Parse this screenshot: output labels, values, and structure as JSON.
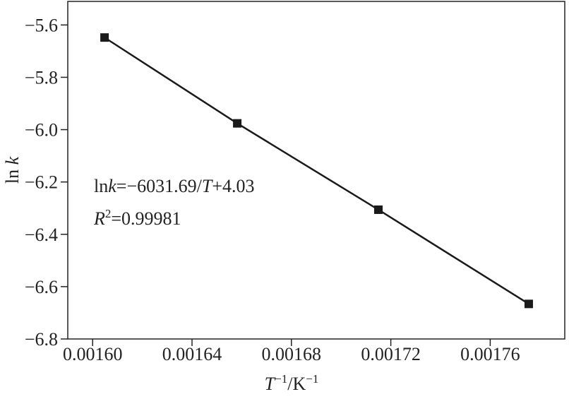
{
  "chart_data": {
    "type": "line",
    "x_label": [
      "T",
      "−1",
      "/K",
      "−1"
    ],
    "y_label": [
      "ln ",
      "k"
    ],
    "annotations": [
      [
        "ln",
        "k",
        "=−6031.69/",
        "T",
        "+4.03"
      ],
      [
        "R",
        "2",
        "=0.99981"
      ]
    ],
    "x": [
      0.0016048,
      0.0016582,
      0.001715,
      0.0017755
    ],
    "series": [
      {
        "color": "#1a1a1a",
        "values": [
          -5.648,
          -5.976,
          -6.306,
          -6.666
        ]
      }
    ],
    "xlim": [
      0.00159,
      0.00179
    ],
    "ylim": [
      -6.8,
      -5.51
    ],
    "xticks": [
      {
        "value": 0.0016,
        "label": "0.00160"
      },
      {
        "value": 0.00164,
        "label": "0.00164"
      },
      {
        "value": 0.00168,
        "label": "0.00168"
      },
      {
        "value": 0.00172,
        "label": "0.00172"
      },
      {
        "value": 0.00176,
        "label": "0.00176"
      }
    ],
    "yticks": [
      {
        "value": -5.6,
        "label": "−5.6"
      },
      {
        "value": -5.8,
        "label": "−5.8"
      },
      {
        "value": -6.0,
        "label": "−6.0"
      },
      {
        "value": -6.2,
        "label": "−6.2"
      },
      {
        "value": -6.4,
        "label": "−6.4"
      },
      {
        "value": -6.6,
        "label": "−6.6"
      },
      {
        "value": -6.8,
        "label": "−6.8"
      }
    ]
  }
}
